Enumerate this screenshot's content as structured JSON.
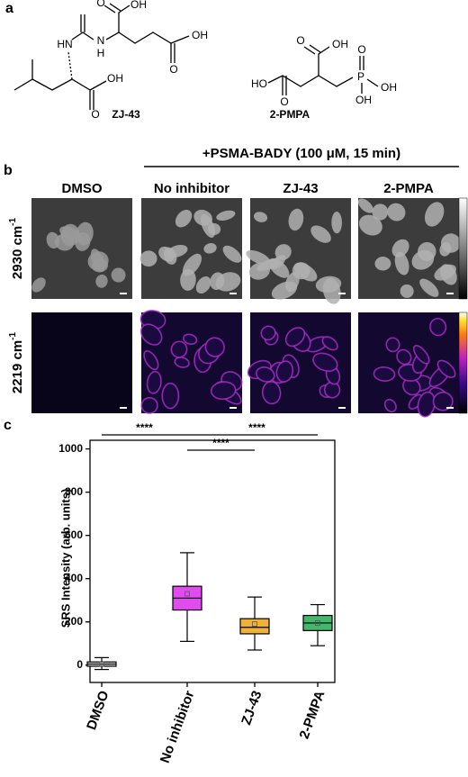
{
  "panel_a": {
    "label": "a",
    "zj43": {
      "name": "ZJ-43",
      "atoms": [
        "O",
        "OH",
        "HN",
        "N",
        "H",
        "OH",
        "O",
        "OH",
        "O"
      ]
    },
    "pmpa": {
      "name": "2-PMPA",
      "atoms": [
        "OH",
        "O",
        "HO",
        "O",
        "P",
        "O",
        "OH",
        "OH"
      ]
    }
  },
  "panel_b": {
    "label": "b",
    "treatment": "+PSMA-BADY (100 μM, 15  min)",
    "columns": [
      "DMSO",
      "No inhibitor",
      "ZJ-43",
      "2-PMPA"
    ],
    "rows": [
      {
        "text": "2930 cm",
        "sup": "-1"
      },
      {
        "text": "2219 cm",
        "sup": "-1"
      }
    ]
  },
  "chart_data": {
    "type": "box",
    "panel_label": "c",
    "y_label": "SRS Intensity (arb. units)",
    "categories": [
      "DMSO",
      "No inhibitor",
      "ZJ-43",
      "2-PMPA"
    ],
    "colors": [
      "#cfcfcf",
      "#e14cf0",
      "#eeb23a",
      "#44b86a"
    ],
    "boxes": [
      {
        "min": -20,
        "q1": -5,
        "median": 5,
        "q3": 15,
        "max": 35,
        "mean": 5
      },
      {
        "min": 110,
        "q1": 255,
        "median": 310,
        "q3": 365,
        "max": 520,
        "mean": 330
      },
      {
        "min": 70,
        "q1": 145,
        "median": 175,
        "q3": 215,
        "max": 315,
        "mean": 190
      },
      {
        "min": 90,
        "q1": 160,
        "median": 195,
        "q3": 230,
        "max": 280,
        "mean": 195
      }
    ],
    "ylim": [
      -80,
      1040
    ],
    "yticks": [
      0,
      200,
      400,
      600,
      800,
      1000
    ],
    "annotations": [
      "****",
      "****",
      "****"
    ]
  }
}
